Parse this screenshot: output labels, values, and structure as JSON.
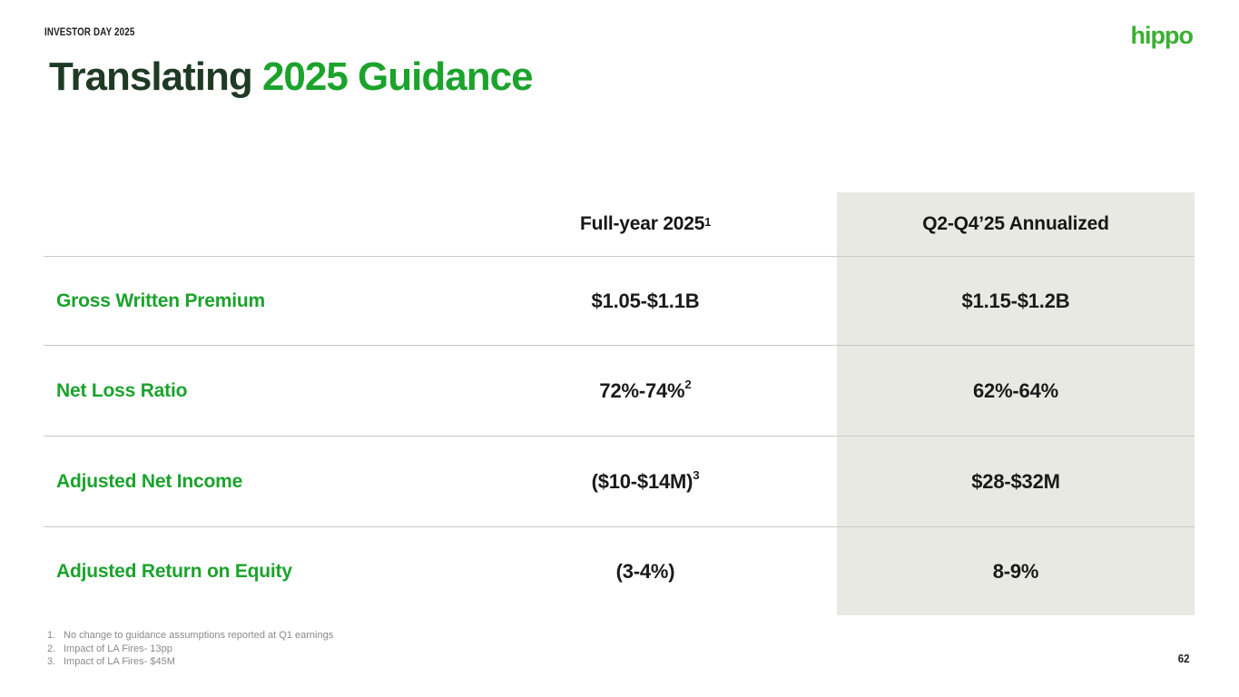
{
  "header": {
    "eyebrow": "INVESTOR DAY 2025",
    "logo": "hippo"
  },
  "title": {
    "dark": "Translating",
    "green": "2025 Guidance"
  },
  "table": {
    "columns": [
      {
        "label": "Full-year 2025",
        "sup": "1"
      },
      {
        "label": "Q2-Q4’25 Annualized",
        "sup": ""
      }
    ],
    "rows": [
      {
        "label": "Gross Written Premium",
        "full_year": "$1.05-$1.1B",
        "full_year_sup": "",
        "annualized": "$1.15-$1.2B"
      },
      {
        "label": "Net Loss Ratio",
        "full_year": "72%-74%",
        "full_year_sup": "2",
        "annualized": "62%-64%"
      },
      {
        "label": "Adjusted Net Income",
        "full_year": "($10-$14M)",
        "full_year_sup": "3",
        "annualized": "$28-$32M"
      },
      {
        "label": "Adjusted Return on Equity",
        "full_year": "(3-4%)",
        "full_year_sup": "",
        "annualized": "8-9%"
      }
    ]
  },
  "footnotes": [
    {
      "num": "1.",
      "text": "No change to guidance assumptions reported at Q1 earnings"
    },
    {
      "num": "2.",
      "text": "Impact of LA Fires- 13pp"
    },
    {
      "num": "3.",
      "text": "Impact of LA Fires- $45M"
    }
  ],
  "page_number": "62",
  "colors": {
    "accent_green": "#1ba32c",
    "title_dark": "#1f3a24",
    "logo_green": "#3ab031",
    "column_highlight": "#e9e9e4",
    "divider": "#c9c9c7"
  }
}
